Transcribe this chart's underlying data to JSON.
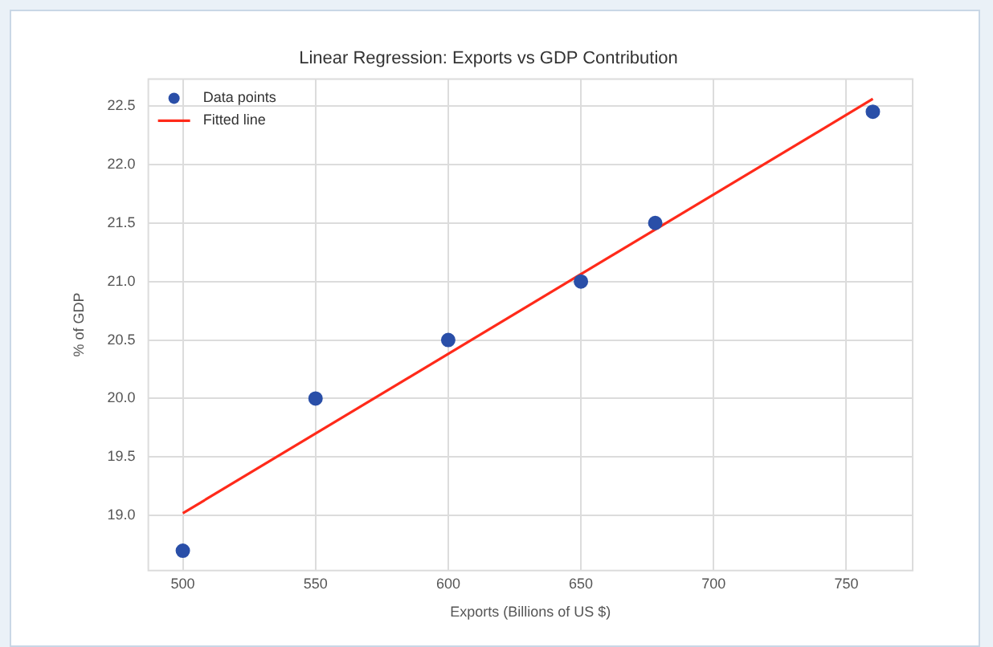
{
  "chart_data": {
    "type": "scatter",
    "title": "Linear Regression: Exports vs GDP Contribution",
    "xlabel": "Exports (Billions of US $)",
    "ylabel": "% of GDP",
    "series": [
      {
        "name": "Data points",
        "color": "#2a4fa8",
        "x": [
          500,
          550,
          600,
          650,
          678,
          760
        ],
        "values": [
          18.7,
          20.0,
          20.5,
          21.0,
          21.5,
          22.45
        ]
      },
      {
        "name": "Fitted line",
        "type": "line",
        "color": "#ff2a1a",
        "x": [
          500,
          760
        ],
        "values": [
          19.02,
          22.56
        ]
      }
    ],
    "xlim": [
      487,
      775
    ],
    "xticks": [
      500,
      550,
      600,
      650,
      700,
      750
    ],
    "ylim": [
      18.53,
      22.73
    ],
    "yticks": [
      {
        "value": 19,
        "label": "19.0"
      },
      19.5,
      {
        "value": 20,
        "label": "20.0"
      },
      20.5,
      {
        "value": 21,
        "label": "21.0"
      },
      21.5,
      {
        "value": 22,
        "label": "22.0"
      },
      22.5
    ],
    "grid": true,
    "legend": "top left"
  }
}
